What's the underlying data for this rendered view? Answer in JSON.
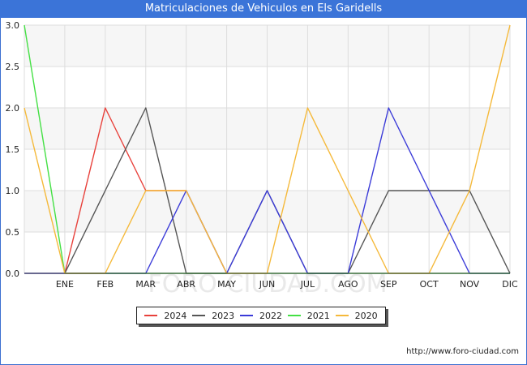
{
  "chart_data": {
    "type": "line",
    "title": "Matriculaciones de Vehiculos en Els Garidells",
    "categories": [
      "ENE",
      "FEB",
      "MAR",
      "ABR",
      "MAY",
      "JUN",
      "JUL",
      "AGO",
      "SEP",
      "OCT",
      "NOV",
      "DIC"
    ],
    "ylim": [
      0,
      3
    ],
    "yticks": [
      "0.0",
      "0.5",
      "1.0",
      "1.5",
      "2.0",
      "2.5",
      "3.0"
    ],
    "grid": true,
    "legend_position": "bottom",
    "x_start_point": "dic-prev",
    "series": [
      {
        "name": "2024",
        "color": "#e8413b",
        "values": [
          0,
          2,
          1,
          1,
          0,
          null,
          null,
          null,
          null,
          null,
          null,
          null
        ]
      },
      {
        "name": "2023",
        "color": "#555555",
        "values": [
          0,
          1,
          2,
          0,
          0,
          1,
          0,
          0,
          1,
          1,
          1,
          0
        ]
      },
      {
        "name": "2022",
        "color": "#3b3bd8",
        "values": [
          0,
          0,
          0,
          1,
          0,
          1,
          0,
          0,
          2,
          1,
          0,
          0
        ],
        "start_value": 0
      },
      {
        "name": "2021",
        "color": "#44e044",
        "values": [
          0,
          0,
          0,
          0,
          0,
          0,
          0,
          0,
          0,
          0,
          0,
          0
        ],
        "start_value": 3
      },
      {
        "name": "2020",
        "color": "#f5b93a",
        "values": [
          0,
          0,
          1,
          1,
          0,
          0,
          2,
          1,
          0,
          0,
          1,
          3
        ],
        "start_value": 2
      }
    ]
  },
  "footer": {
    "source": "http://www.foro-ciudad.com"
  },
  "watermark": "FORO-CIUDAD.COM"
}
